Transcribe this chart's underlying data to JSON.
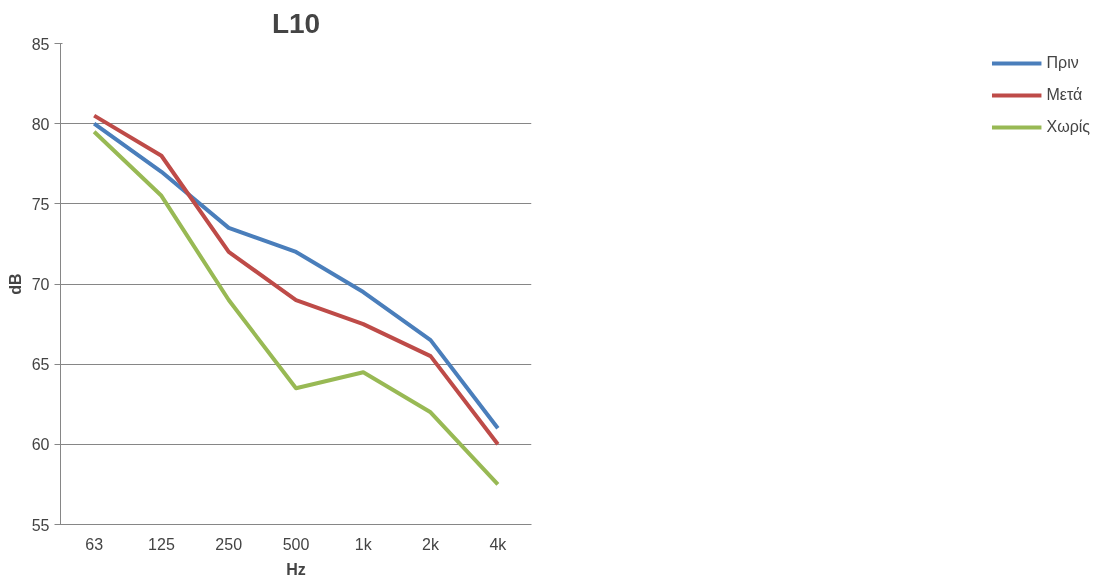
{
  "chart_data": {
    "type": "line",
    "title": "L10",
    "xlabel": "Hz",
    "ylabel": "dB",
    "categories": [
      "63",
      "125",
      "250",
      "500",
      "1k",
      "2k",
      "4k"
    ],
    "series": [
      {
        "name": "Πριν",
        "color": "#4a7ebb",
        "values": [
          80,
          77,
          73.5,
          72,
          69.5,
          66.5,
          61
        ]
      },
      {
        "name": "Μετά",
        "color": "#be4b48",
        "values": [
          80.5,
          78,
          72,
          69,
          67.5,
          65.5,
          60
        ]
      },
      {
        "name": "Χωρίς",
        "color": "#98b954",
        "values": [
          79.5,
          75.5,
          69,
          63.5,
          64.5,
          62,
          57.5
        ]
      }
    ],
    "ylim": [
      55,
      85
    ],
    "yticks": [
      55,
      60,
      65,
      70,
      75,
      80,
      85
    ],
    "grid": "y",
    "legend": "right",
    "marker": "none",
    "line_style": "solid"
  }
}
